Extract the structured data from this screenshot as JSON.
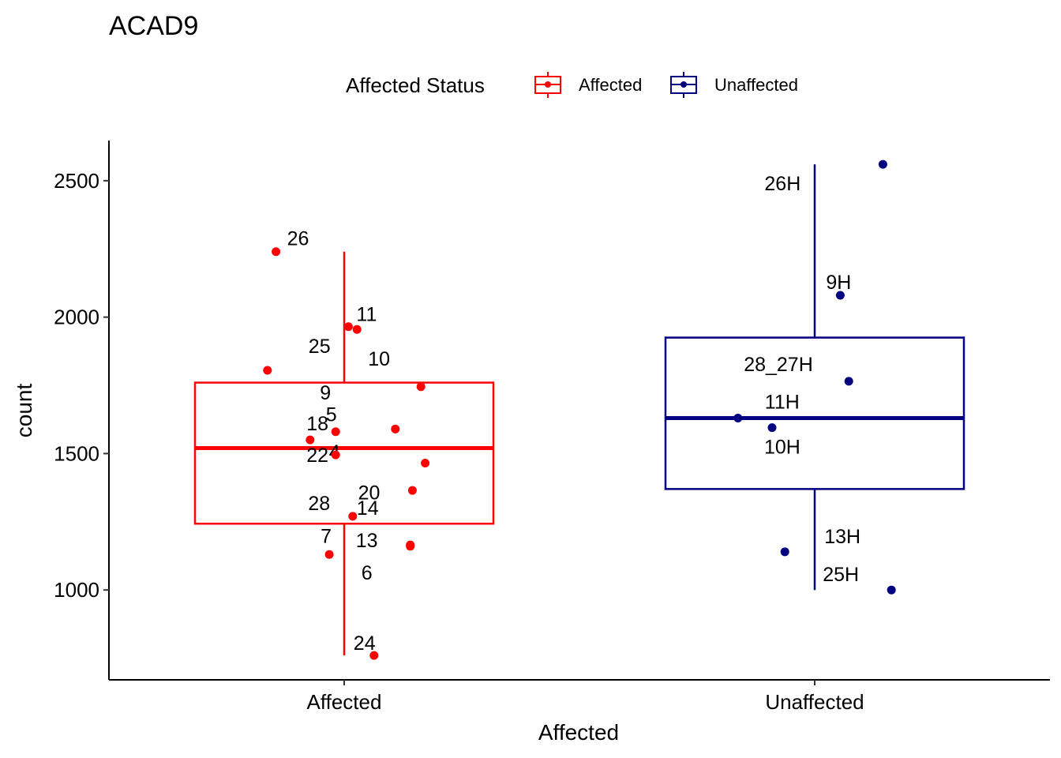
{
  "chart_data": {
    "type": "box",
    "title": "ACAD9",
    "xlabel": "Affected",
    "ylabel": "count",
    "categories": [
      "Affected",
      "Unaffected"
    ],
    "ylim": [
      700,
      2640
    ],
    "yticks": [
      1000,
      1500,
      2000,
      2500
    ],
    "grid": false,
    "legend": {
      "title": "Affected Status",
      "position": "top",
      "items": [
        {
          "label": "Affected",
          "color": "#FF0000"
        },
        {
          "label": "Unaffected",
          "color": "#000080"
        }
      ]
    },
    "series": [
      {
        "name": "Affected",
        "color": "#FF0000",
        "box": {
          "min": 760,
          "q1": 1243,
          "median": 1520,
          "q3": 1760,
          "max": 2240
        },
        "points": [
          {
            "label": "26",
            "jitter": -0.16,
            "y": 2240
          },
          {
            "label": "11",
            "jitter": 0.01,
            "y": 1965
          },
          {
            "label": "10",
            "jitter": 0.03,
            "y": 1955
          },
          {
            "label": "25",
            "jitter": -0.18,
            "y": 1805
          },
          {
            "label": "9",
            "jitter": 0.18,
            "y": 1745
          },
          {
            "label": "5",
            "jitter": 0.12,
            "y": 1590
          },
          {
            "label": "18",
            "jitter": -0.02,
            "y": 1580
          },
          {
            "label": "4",
            "jitter": -0.08,
            "y": 1550
          },
          {
            "label": "22",
            "jitter": -0.02,
            "y": 1495
          },
          {
            "label": "20",
            "jitter": 0.19,
            "y": 1465
          },
          {
            "label": "28",
            "jitter": 0.16,
            "y": 1365
          },
          {
            "label": "14",
            "jitter": 0.02,
            "y": 1270
          },
          {
            "label": "13",
            "jitter": 0.155,
            "y": 1165
          },
          {
            "label": "6",
            "jitter": 0.155,
            "y": 1160
          },
          {
            "label": "7",
            "jitter": -0.035,
            "y": 1130
          },
          {
            "label": "24",
            "jitter": 0.07,
            "y": 760
          }
        ]
      },
      {
        "name": "Unaffected",
        "color": "#000080",
        "box": {
          "min": 1000,
          "q1": 1370,
          "median": 1630,
          "q3": 1925,
          "max": 2560
        },
        "points": [
          {
            "label": "26H",
            "jitter": 0.16,
            "y": 2560
          },
          {
            "label": "9H",
            "jitter": 0.06,
            "y": 2080
          },
          {
            "label": "28_27H",
            "jitter": 0.08,
            "y": 1765
          },
          {
            "label": "11H",
            "jitter": -0.18,
            "y": 1630
          },
          {
            "label": "10H",
            "jitter": -0.1,
            "y": 1595
          },
          {
            "label": "13H",
            "jitter": -0.07,
            "y": 1140
          },
          {
            "label": "25H",
            "jitter": 0.18,
            "y": 1000
          }
        ]
      }
    ]
  }
}
